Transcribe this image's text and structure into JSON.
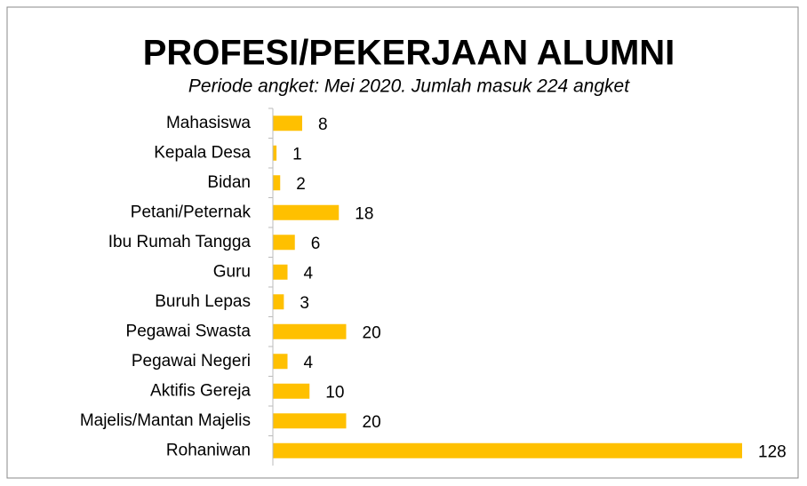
{
  "chart_data": {
    "type": "bar",
    "orientation": "horizontal",
    "title": "PROFESI/PEKERJAAN ALUMNI",
    "subtitle": "Periode angket: Mei 2020. Jumlah masuk 224 angket",
    "categories": [
      "Mahasiswa",
      "Kepala Desa",
      "Bidan",
      "Petani/Peternak",
      "Ibu Rumah Tangga",
      "Guru",
      "Buruh Lepas",
      "Pegawai Swasta",
      "Pegawai Negeri",
      "Aktifis Gereja",
      "Majelis/Mantan Majelis",
      "Rohaniwan"
    ],
    "values": [
      8,
      1,
      2,
      18,
      6,
      4,
      3,
      20,
      4,
      10,
      20,
      128
    ],
    "color": "#ffc000"
  }
}
